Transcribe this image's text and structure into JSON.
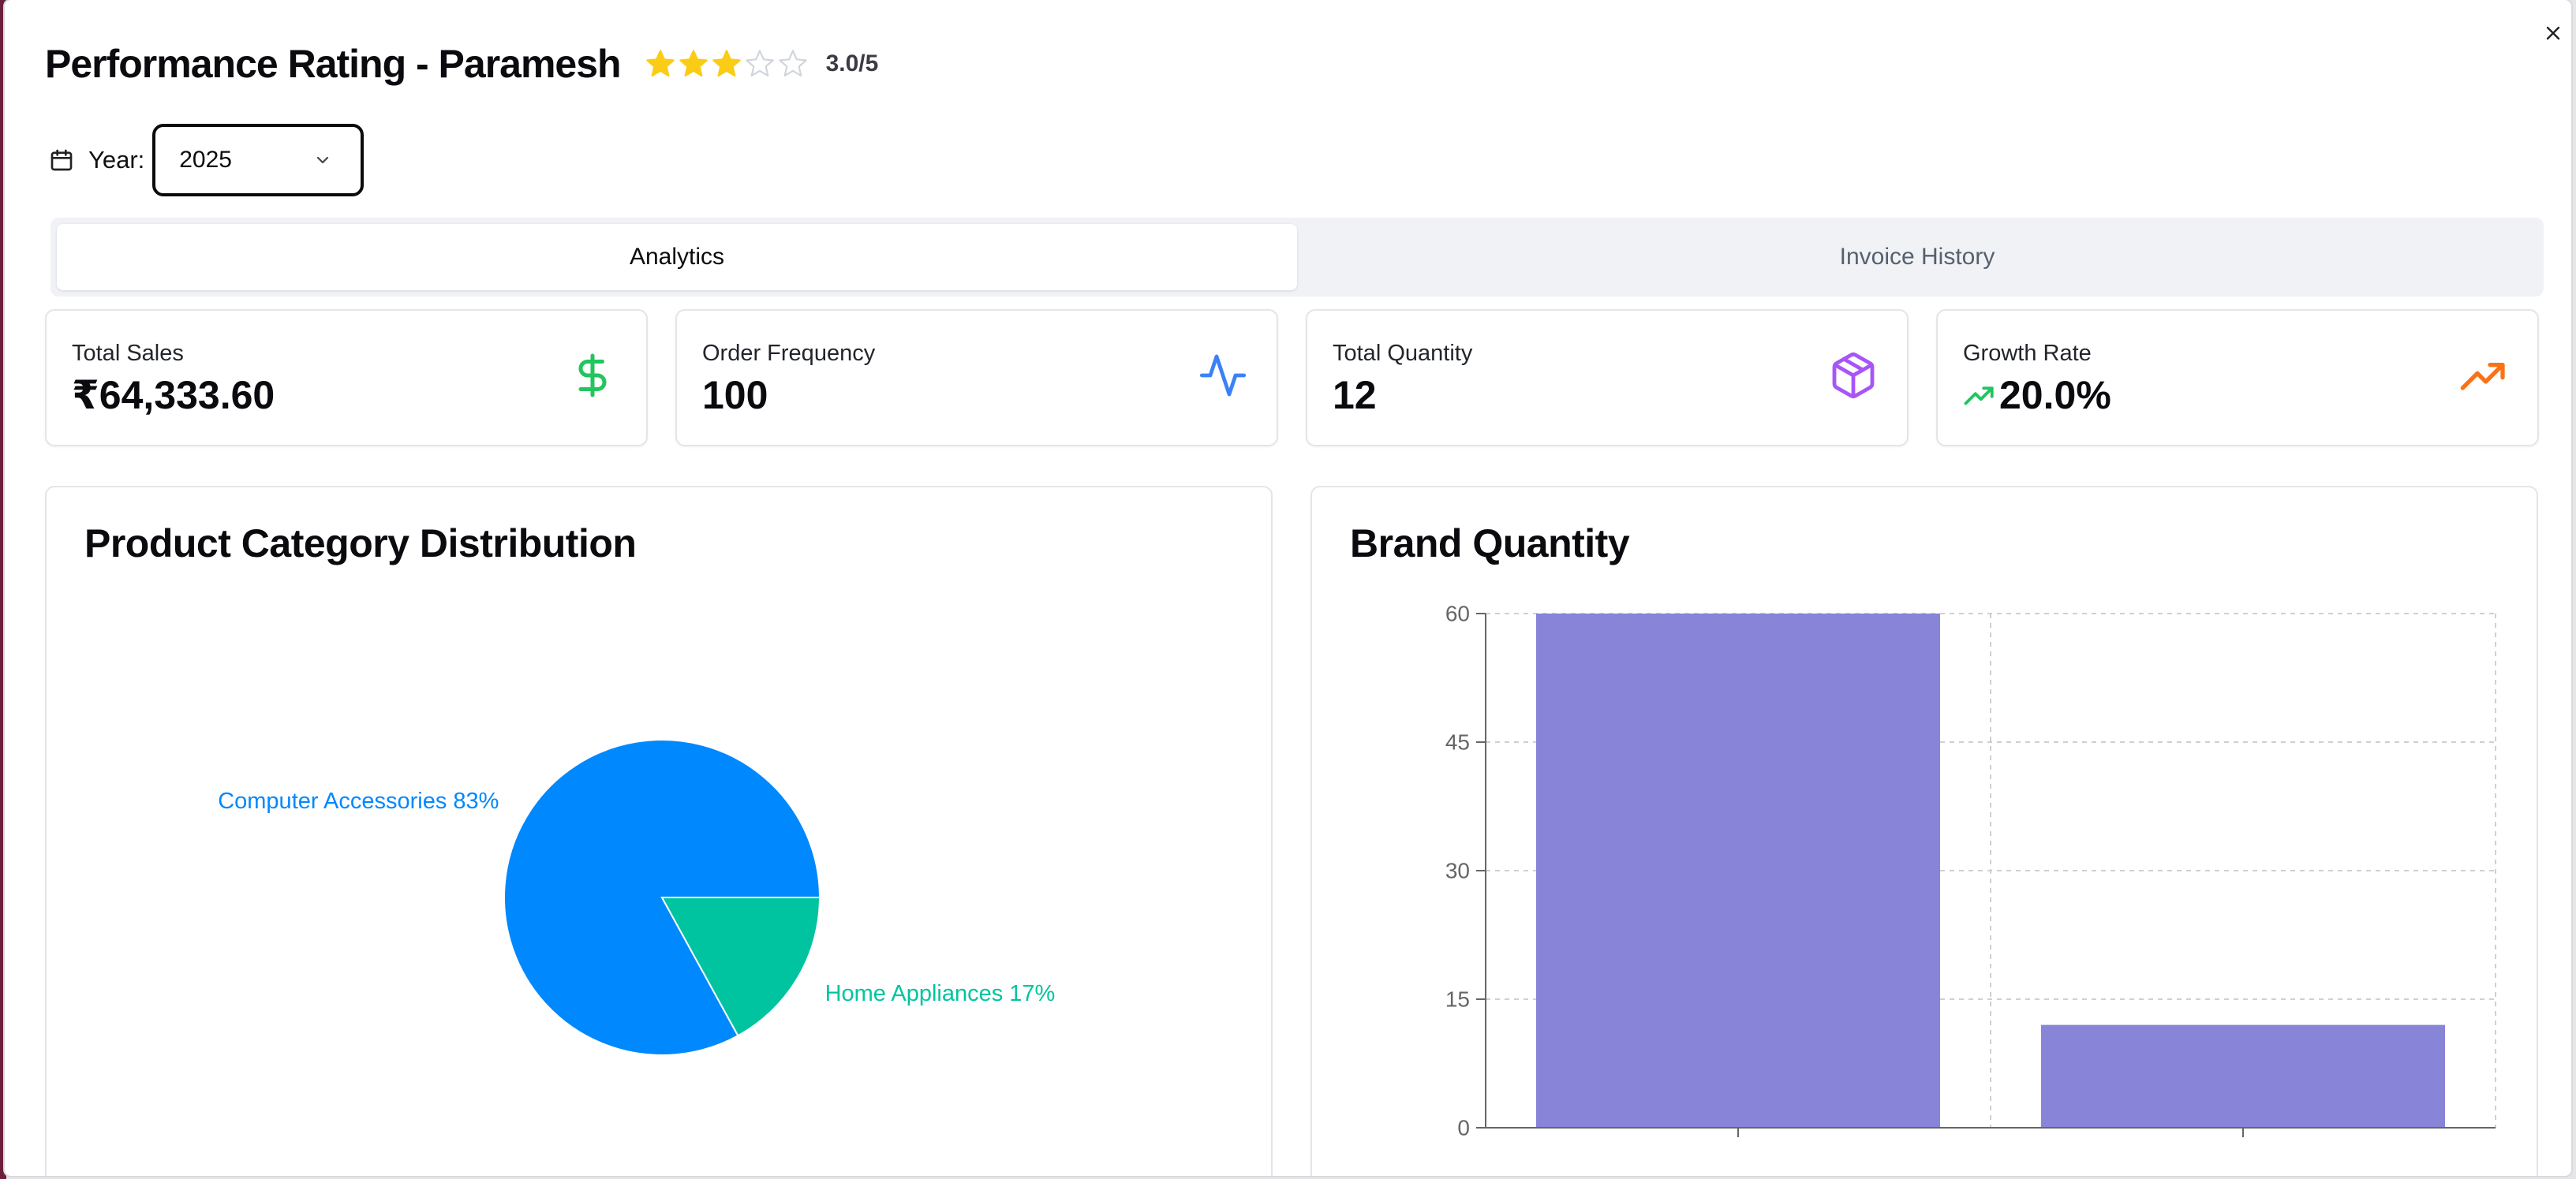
{
  "header": {
    "title": "Performance Rating - Paramesh",
    "rating_value": 3.0,
    "rating_max": 5,
    "rating_text": "3.0/5",
    "star_filled_color": "#FACC15",
    "star_empty_color": "#D1D5DB"
  },
  "filter": {
    "year_label": "Year:",
    "year_value": "2025",
    "calendar_icon": "calendar-icon",
    "chevron_icon": "chevron-down-icon"
  },
  "tabs": [
    {
      "label": "Analytics",
      "active": true
    },
    {
      "label": "Invoice History",
      "active": false
    }
  ],
  "stats": [
    {
      "label": "Total Sales",
      "value": "₹64,333.60",
      "icon": "dollar-sign-icon",
      "icon_color": "#22C55E"
    },
    {
      "label": "Order Frequency",
      "value": "100",
      "icon": "activity-icon",
      "icon_color": "#3B82F6"
    },
    {
      "label": "Total Quantity",
      "value": "12",
      "icon": "package-icon",
      "icon_color": "#A855F7"
    },
    {
      "label": "Growth Rate",
      "value": "20.0%",
      "icon": "trending-up-icon",
      "icon_color": "#F97316",
      "trend_icon": "trending-up-small-icon",
      "trend_color": "#22C55E"
    }
  ],
  "pie_panel": {
    "title": "Product Category Distribution"
  },
  "bar_panel": {
    "title": "Brand Quantity"
  },
  "chart_data": [
    {
      "type": "pie",
      "title": "Product Category Distribution",
      "slices": [
        {
          "name": "Computer Accessories",
          "value": 83,
          "label": "Computer Accessories 83%",
          "color": "#0088FE"
        },
        {
          "name": "Home Appliances",
          "value": 17,
          "label": "Home Appliances 17%",
          "color": "#00C49F"
        }
      ]
    },
    {
      "type": "bar",
      "title": "Brand Quantity",
      "categories": [
        "",
        ""
      ],
      "values": [
        60,
        12
      ],
      "ylim": [
        0,
        60
      ],
      "yticks": [
        "0",
        "15",
        "30",
        "45",
        "60"
      ],
      "grid": true,
      "bar_color": "#8884D8"
    }
  ]
}
